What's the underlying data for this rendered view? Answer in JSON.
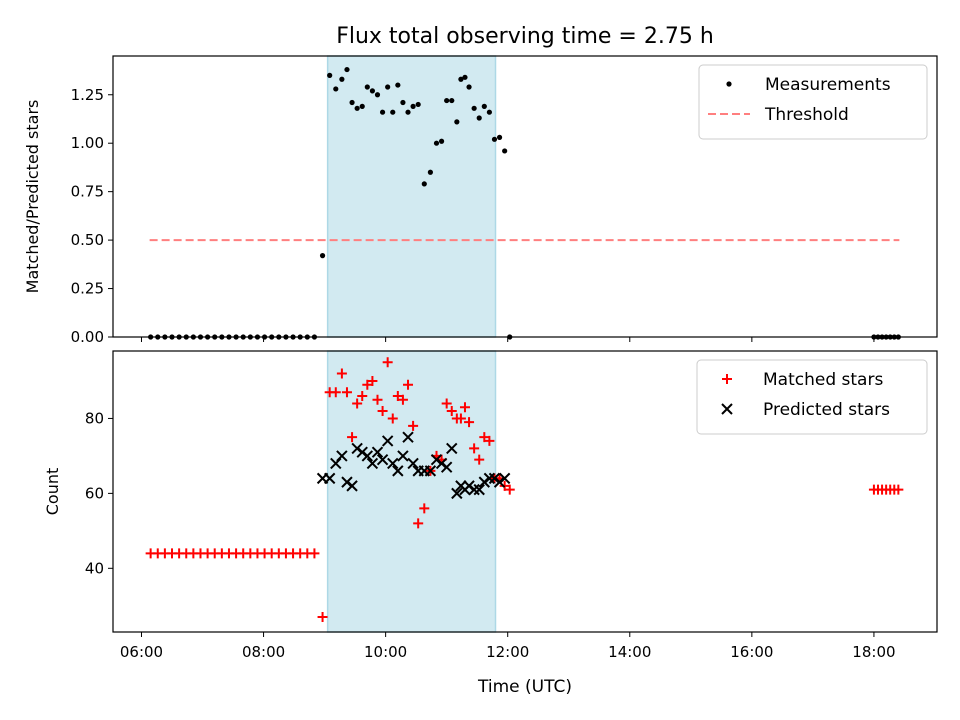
{
  "chart_data": {
    "title": "Flux total observing time = 2.75 h",
    "xlabel": "Time (UTC)",
    "x_ticks": [
      "06:00",
      "08:00",
      "10:00",
      "12:00",
      "14:00",
      "16:00",
      "18:00"
    ],
    "xlim": [
      "05:32",
      "19:02"
    ],
    "highlight_span": {
      "start": "09:03",
      "end": "11:48",
      "color": "#add8e6"
    },
    "panels": [
      {
        "type": "scatter",
        "ylabel": "Matched/Predicted stars",
        "ylim": [
          0,
          1.45
        ],
        "y_ticks": [
          "0.00",
          "0.25",
          "0.50",
          "0.75",
          "1.00",
          "1.25"
        ],
        "legend_position": "top-right",
        "threshold": {
          "name": "Threshold",
          "value": 0.5,
          "x_start": "06:08",
          "x_end": "18:25",
          "color": "#ff7f7f",
          "style": "dashed"
        },
        "series": [
          {
            "name": "Measurements",
            "color": "#000000",
            "marker": "dot",
            "points": [
              [
                "06:09",
                0
              ],
              [
                "06:16",
                0
              ],
              [
                "06:23",
                0
              ],
              [
                "06:30",
                0
              ],
              [
                "06:37",
                0
              ],
              [
                "06:44",
                0
              ],
              [
                "06:51",
                0
              ],
              [
                "06:58",
                0
              ],
              [
                "07:05",
                0
              ],
              [
                "07:12",
                0
              ],
              [
                "07:19",
                0
              ],
              [
                "07:26",
                0
              ],
              [
                "07:33",
                0
              ],
              [
                "07:40",
                0
              ],
              [
                "07:47",
                0
              ],
              [
                "07:54",
                0
              ],
              [
                "08:01",
                0
              ],
              [
                "08:08",
                0
              ],
              [
                "08:15",
                0
              ],
              [
                "08:22",
                0
              ],
              [
                "08:29",
                0
              ],
              [
                "08:36",
                0
              ],
              [
                "08:43",
                0
              ],
              [
                "08:50",
                0
              ],
              [
                "08:58",
                0.42
              ],
              [
                "09:05",
                1.35
              ],
              [
                "09:11",
                1.28
              ],
              [
                "09:17",
                1.33
              ],
              [
                "09:22",
                1.38
              ],
              [
                "09:27",
                1.21
              ],
              [
                "09:32",
                1.18
              ],
              [
                "09:37",
                1.19
              ],
              [
                "09:42",
                1.29
              ],
              [
                "09:47",
                1.27
              ],
              [
                "09:52",
                1.25
              ],
              [
                "09:57",
                1.16
              ],
              [
                "10:02",
                1.29
              ],
              [
                "10:07",
                1.16
              ],
              [
                "10:12",
                1.3
              ],
              [
                "10:17",
                1.21
              ],
              [
                "10:22",
                1.16
              ],
              [
                "10:27",
                1.19
              ],
              [
                "10:32",
                1.2
              ],
              [
                "10:38",
                0.79
              ],
              [
                "10:44",
                0.85
              ],
              [
                "10:50",
                1.0
              ],
              [
                "10:55",
                1.01
              ],
              [
                "11:00",
                1.22
              ],
              [
                "11:05",
                1.22
              ],
              [
                "11:10",
                1.11
              ],
              [
                "11:14",
                1.33
              ],
              [
                "11:18",
                1.34
              ],
              [
                "11:22",
                1.29
              ],
              [
                "11:27",
                1.18
              ],
              [
                "11:32",
                1.13
              ],
              [
                "11:37",
                1.19
              ],
              [
                "11:42",
                1.16
              ],
              [
                "11:47",
                1.02
              ],
              [
                "11:52",
                1.03
              ],
              [
                "11:57",
                0.96
              ],
              [
                "12:02",
                0
              ],
              [
                "18:00",
                0
              ],
              [
                "18:04",
                0
              ],
              [
                "18:08",
                0
              ],
              [
                "18:12",
                0
              ],
              [
                "18:16",
                0
              ],
              [
                "18:20",
                0
              ],
              [
                "18:24",
                0
              ]
            ]
          }
        ]
      },
      {
        "type": "scatter",
        "ylabel": "Count",
        "ylim": [
          23,
          98
        ],
        "y_ticks": [
          "40",
          "60",
          "80"
        ],
        "legend_position": "top-right",
        "series": [
          {
            "name": "Matched stars",
            "color": "#ff0000",
            "marker": "plus",
            "points": [
              [
                "06:09",
                44
              ],
              [
                "06:16",
                44
              ],
              [
                "06:23",
                44
              ],
              [
                "06:30",
                44
              ],
              [
                "06:37",
                44
              ],
              [
                "06:44",
                44
              ],
              [
                "06:51",
                44
              ],
              [
                "06:58",
                44
              ],
              [
                "07:05",
                44
              ],
              [
                "07:12",
                44
              ],
              [
                "07:19",
                44
              ],
              [
                "07:26",
                44
              ],
              [
                "07:33",
                44
              ],
              [
                "07:40",
                44
              ],
              [
                "07:47",
                44
              ],
              [
                "07:54",
                44
              ],
              [
                "08:01",
                44
              ],
              [
                "08:08",
                44
              ],
              [
                "08:15",
                44
              ],
              [
                "08:22",
                44
              ],
              [
                "08:29",
                44
              ],
              [
                "08:36",
                44
              ],
              [
                "08:43",
                44
              ],
              [
                "08:50",
                44
              ],
              [
                "08:58",
                27
              ],
              [
                "09:05",
                87
              ],
              [
                "09:11",
                87
              ],
              [
                "09:17",
                92
              ],
              [
                "09:22",
                87
              ],
              [
                "09:27",
                75
              ],
              [
                "09:32",
                84
              ],
              [
                "09:37",
                86
              ],
              [
                "09:42",
                89
              ],
              [
                "09:47",
                90
              ],
              [
                "09:52",
                85
              ],
              [
                "09:57",
                82
              ],
              [
                "10:02",
                95
              ],
              [
                "10:07",
                80
              ],
              [
                "10:12",
                86
              ],
              [
                "10:17",
                85
              ],
              [
                "10:22",
                89
              ],
              [
                "10:27",
                78
              ],
              [
                "10:32",
                52
              ],
              [
                "10:38",
                56
              ],
              [
                "10:44",
                66
              ],
              [
                "10:50",
                70
              ],
              [
                "10:55",
                69
              ],
              [
                "11:00",
                84
              ],
              [
                "11:05",
                82
              ],
              [
                "11:10",
                80
              ],
              [
                "11:14",
                80
              ],
              [
                "11:18",
                83
              ],
              [
                "11:22",
                79
              ],
              [
                "11:27",
                72
              ],
              [
                "11:32",
                69
              ],
              [
                "11:37",
                75
              ],
              [
                "11:42",
                74
              ],
              [
                "11:47",
                64
              ],
              [
                "11:52",
                64
              ],
              [
                "11:57",
                62
              ],
              [
                "12:02",
                61
              ],
              [
                "18:00",
                61
              ],
              [
                "18:04",
                61
              ],
              [
                "18:08",
                61
              ],
              [
                "18:12",
                61
              ],
              [
                "18:16",
                61
              ],
              [
                "18:20",
                61
              ],
              [
                "18:24",
                61
              ]
            ]
          },
          {
            "name": "Predicted stars",
            "color": "#000000",
            "marker": "x",
            "points": [
              [
                "08:58",
                64
              ],
              [
                "09:05",
                64
              ],
              [
                "09:11",
                68
              ],
              [
                "09:17",
                70
              ],
              [
                "09:22",
                63
              ],
              [
                "09:27",
                62
              ],
              [
                "09:32",
                72
              ],
              [
                "09:37",
                71
              ],
              [
                "09:42",
                70
              ],
              [
                "09:47",
                68
              ],
              [
                "09:52",
                71
              ],
              [
                "09:57",
                69
              ],
              [
                "10:02",
                74
              ],
              [
                "10:07",
                68
              ],
              [
                "10:12",
                66
              ],
              [
                "10:17",
                70
              ],
              [
                "10:22",
                75
              ],
              [
                "10:27",
                68
              ],
              [
                "10:32",
                66
              ],
              [
                "10:38",
                66
              ],
              [
                "10:44",
                66
              ],
              [
                "10:50",
                69
              ],
              [
                "10:55",
                68
              ],
              [
                "11:00",
                67
              ],
              [
                "11:05",
                72
              ],
              [
                "11:10",
                60
              ],
              [
                "11:14",
                62
              ],
              [
                "11:18",
                61
              ],
              [
                "11:22",
                62
              ],
              [
                "11:27",
                61
              ],
              [
                "11:32",
                61
              ],
              [
                "11:37",
                63
              ],
              [
                "11:42",
                64
              ],
              [
                "11:47",
                64
              ],
              [
                "11:52",
                63
              ],
              [
                "11:57",
                64
              ]
            ]
          }
        ]
      }
    ]
  }
}
